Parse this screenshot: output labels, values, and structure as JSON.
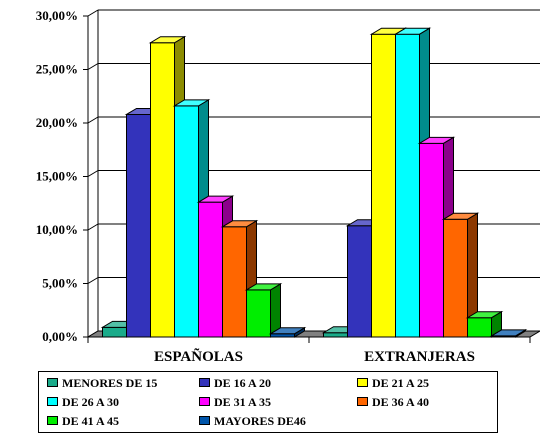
{
  "chart_data": {
    "type": "bar",
    "style": "3d-clustered",
    "categories": [
      "ESPAÑOLAS",
      "EXTRANJERAS"
    ],
    "yticks": [
      "0,00%",
      "5,00%",
      "10,00%",
      "15,00%",
      "20,00%",
      "25,00%",
      "30,00%"
    ],
    "ylim": [
      0,
      30
    ],
    "grid": true,
    "legend_position": "bottom",
    "series": [
      {
        "name": "MENORES DE 15",
        "color": "#1aab8a",
        "values": [
          0.9,
          0.4
        ]
      },
      {
        "name": "DE 16 A 20",
        "color": "#3333bb",
        "values": [
          20.8,
          10.4
        ]
      },
      {
        "name": "DE 21 A 25",
        "color": "#ffff00",
        "values": [
          27.5,
          28.3
        ]
      },
      {
        "name": "DE 26 A 30",
        "color": "#00ffff",
        "values": [
          21.6,
          28.3
        ]
      },
      {
        "name": "DE 31 A 35",
        "color": "#ff00ff",
        "values": [
          12.6,
          18.1
        ]
      },
      {
        "name": "DE 36 A 40",
        "color": "#ff6600",
        "values": [
          10.3,
          11.0
        ]
      },
      {
        "name": "DE 41 A 45",
        "color": "#00ee00",
        "values": [
          4.4,
          1.8
        ]
      },
      {
        "name": "MAYORES DE46",
        "color": "#0055aa",
        "values": [
          0.3,
          0.1
        ]
      }
    ]
  }
}
